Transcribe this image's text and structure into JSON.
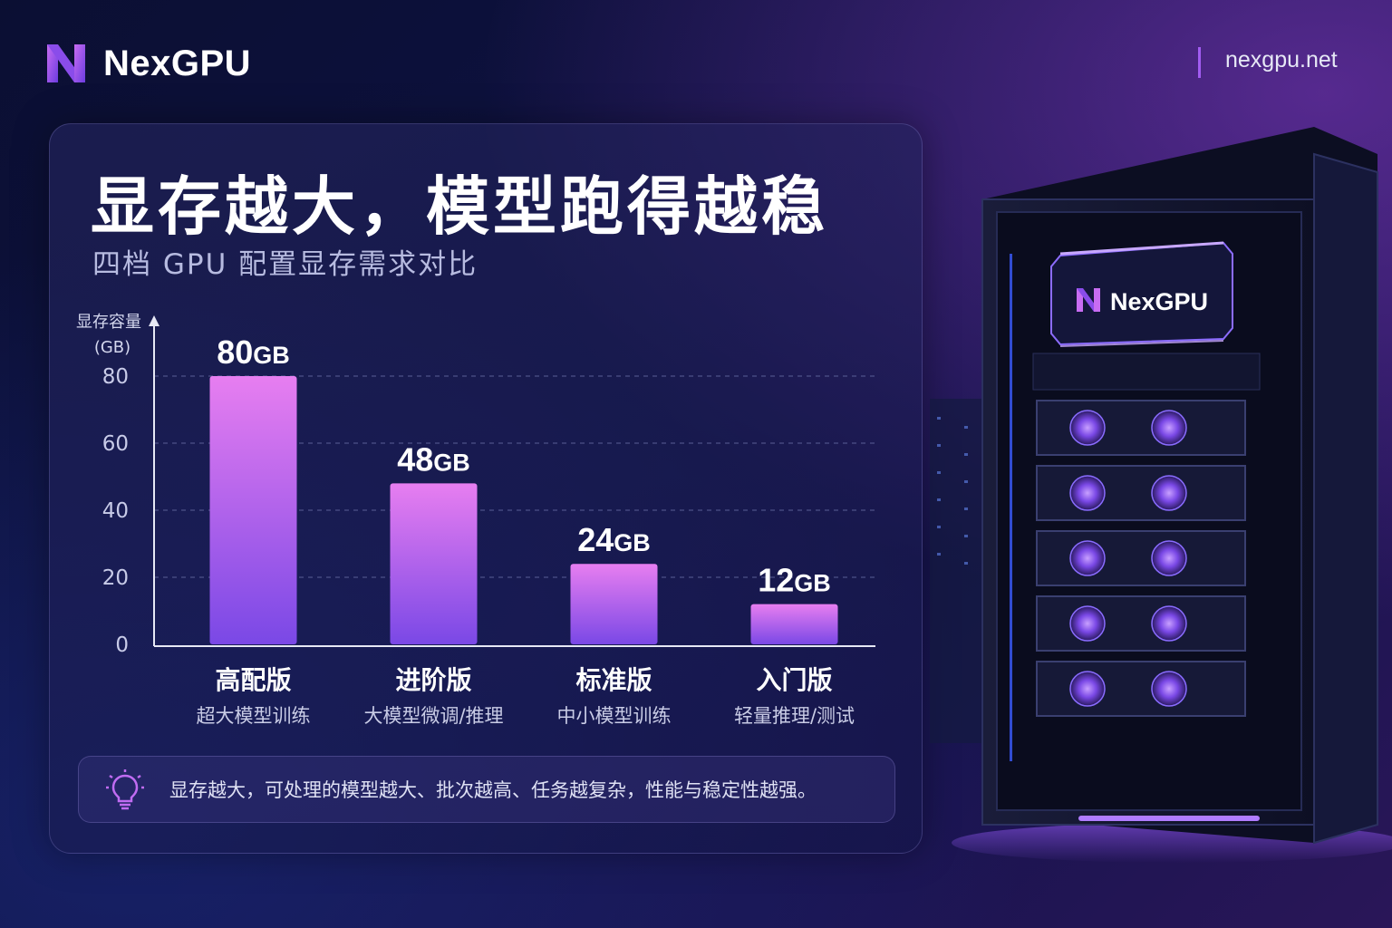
{
  "brand": {
    "name": "NexGPU",
    "logo_icon": "n-logo-icon",
    "url": "nexgpu.net",
    "accent": "#a25cf2"
  },
  "headline": {
    "title": "显存越大，模型跑得越稳",
    "subtitle": "四档 GPU 配置显存需求对比"
  },
  "chart_data": {
    "type": "bar",
    "ylabel": "显存容量",
    "yunit": "(GB)",
    "ylim": [
      0,
      80
    ],
    "yticks": [
      0,
      20,
      40,
      60,
      80
    ],
    "grid": true,
    "categories": [
      "高配版",
      "进阶版",
      "标准版",
      "入门版"
    ],
    "descriptions": [
      "超大模型训练",
      "大模型微调/推理",
      "中小模型训练",
      "轻量推理/测试"
    ],
    "values": [
      80,
      48,
      24,
      12
    ],
    "value_labels": [
      "80",
      "48",
      "24",
      "12"
    ],
    "value_unit": "GB",
    "bar_colors": {
      "top": "#e77ef0",
      "bottom": "#7a48e6"
    }
  },
  "note": {
    "icon": "lightbulb-icon",
    "text": "显存越大，可处理的模型越大、批次越高、任务越复杂，性能与稳定性越强。"
  },
  "server": {
    "label": "NexGPU",
    "logo_icon": "n-logo-icon"
  }
}
